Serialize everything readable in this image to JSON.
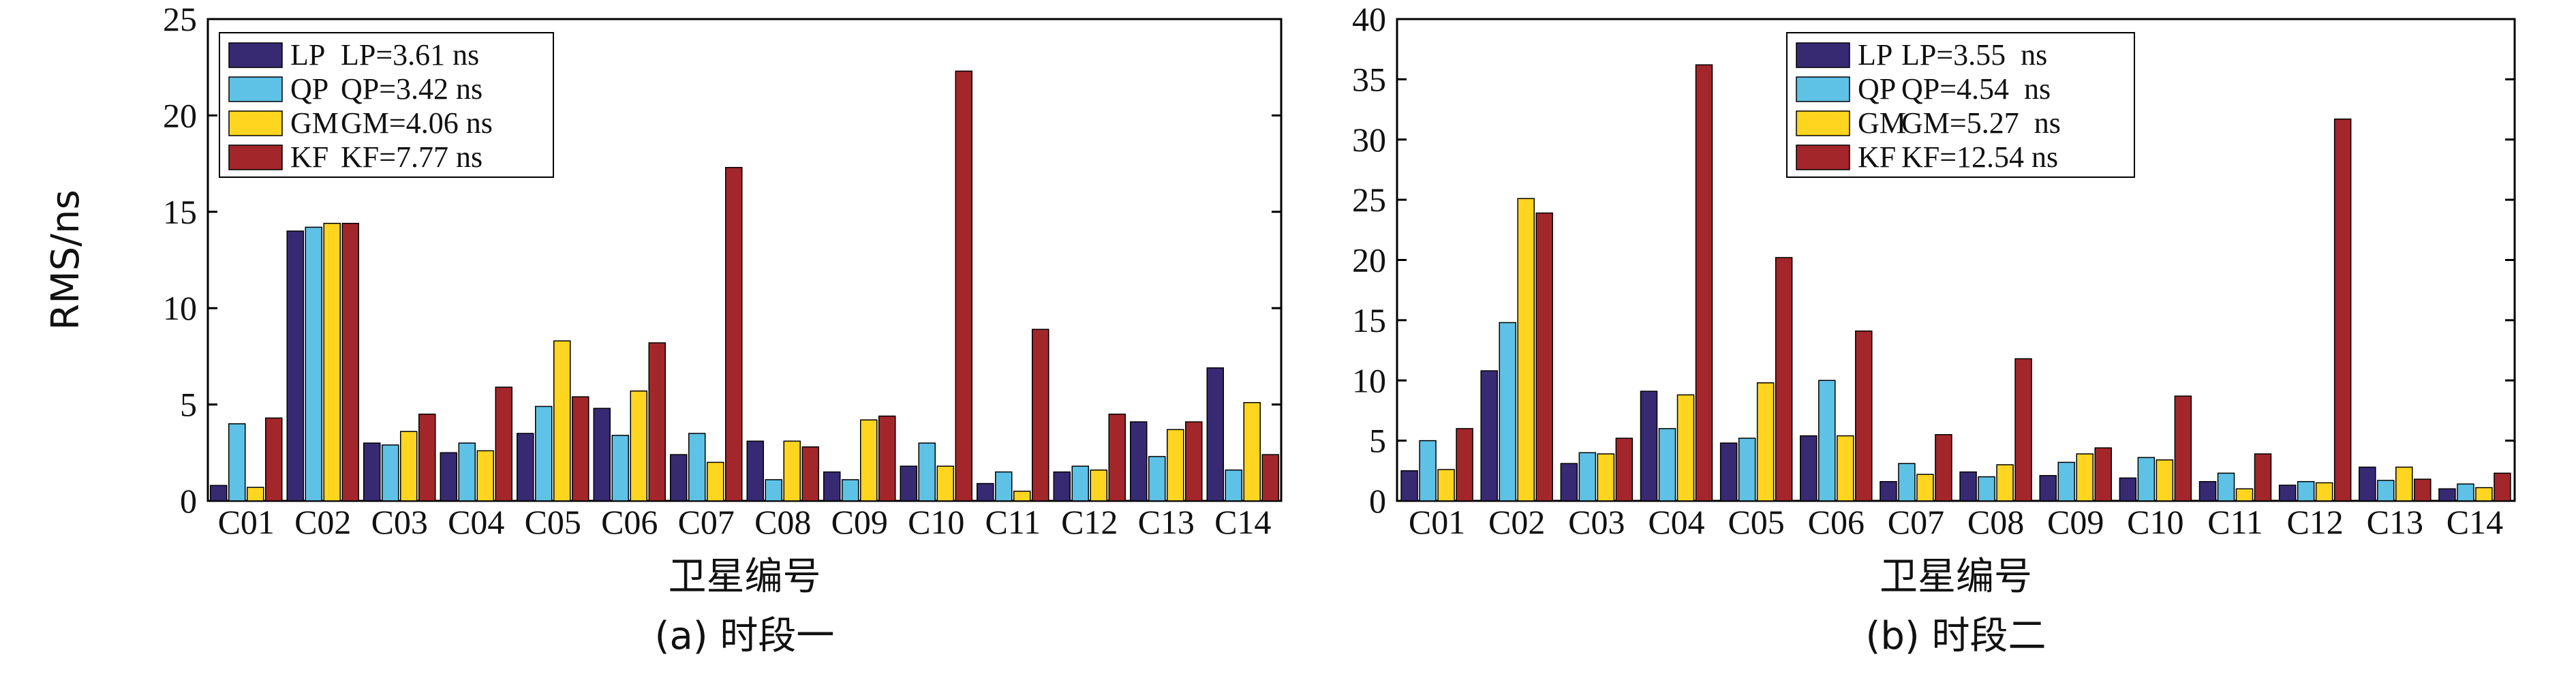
{
  "figure": {
    "colors": {
      "LP": "#372a73",
      "QP": "#5ec1e6",
      "GM": "#ffd51f",
      "KF": "#a3262a"
    },
    "panels": [
      {
        "caption": "(a) 时段一",
        "legend": [
          {
            "key": "LP",
            "name": "LP",
            "value": "LP=3.61 ns"
          },
          {
            "key": "QP",
            "name": "QP",
            "value": "QP=3.42 ns"
          },
          {
            "key": "GM",
            "name": "GM",
            "value": "GM=4.06 ns"
          },
          {
            "key": "KF",
            "name": "KF",
            "value": "KF=7.77 ns"
          }
        ]
      },
      {
        "caption": "(b) 时段二",
        "legend": [
          {
            "key": "LP",
            "name": "LP",
            "value": "LP=3.55  ns"
          },
          {
            "key": "QP",
            "name": "QP",
            "value": "QP=4.54  ns"
          },
          {
            "key": "GM",
            "name": "GM",
            "value": "GM=5.27  ns"
          },
          {
            "key": "KF",
            "name": "KF",
            "value": "KF=12.54 ns"
          }
        ]
      }
    ]
  },
  "chart_data": [
    {
      "type": "bar",
      "title": "",
      "xlabel": "卫星编号",
      "ylabel": "RMS/ns",
      "ylim": [
        0,
        25
      ],
      "yticks": [
        0,
        5,
        10,
        15,
        20,
        25
      ],
      "grid": false,
      "legend_position": "top-left",
      "categories": [
        "C01",
        "C02",
        "C03",
        "C04",
        "C05",
        "C06",
        "C07",
        "C08",
        "C09",
        "C10",
        "C11",
        "C12",
        "C13",
        "C14"
      ],
      "series": [
        {
          "name": "LP",
          "values": [
            0.8,
            14.0,
            3.0,
            2.5,
            3.5,
            4.8,
            2.4,
            3.1,
            1.5,
            1.8,
            0.9,
            1.5,
            4.1,
            6.9
          ]
        },
        {
          "name": "QP",
          "values": [
            4.0,
            14.2,
            2.9,
            3.0,
            4.9,
            3.4,
            3.5,
            1.1,
            1.1,
            3.0,
            1.5,
            1.8,
            2.3,
            1.6
          ]
        },
        {
          "name": "GM",
          "values": [
            0.7,
            14.4,
            3.6,
            2.6,
            8.3,
            5.7,
            2.0,
            3.1,
            4.2,
            1.8,
            0.5,
            1.6,
            3.7,
            5.1
          ]
        },
        {
          "name": "KF",
          "values": [
            4.3,
            14.4,
            4.5,
            5.9,
            5.4,
            8.2,
            17.3,
            2.8,
            4.4,
            22.3,
            8.9,
            4.5,
            4.1,
            2.4
          ]
        }
      ]
    },
    {
      "type": "bar",
      "title": "",
      "xlabel": "卫星编号",
      "ylabel": "",
      "ylim": [
        0,
        40
      ],
      "yticks": [
        0,
        5,
        10,
        15,
        20,
        25,
        30,
        35,
        40
      ],
      "grid": false,
      "legend_position": "top-left",
      "categories": [
        "C01",
        "C02",
        "C03",
        "C04",
        "C05",
        "C06",
        "C07",
        "C08",
        "C09",
        "C10",
        "C11",
        "C12",
        "C13",
        "C14"
      ],
      "series": [
        {
          "name": "LP",
          "values": [
            2.5,
            10.8,
            3.1,
            9.1,
            4.8,
            5.4,
            1.6,
            2.4,
            2.1,
            1.9,
            1.6,
            1.3,
            2.8,
            1.0
          ]
        },
        {
          "name": "QP",
          "values": [
            5.0,
            14.8,
            4.0,
            6.0,
            5.2,
            10.0,
            3.1,
            2.0,
            3.2,
            3.6,
            2.3,
            1.6,
            1.7,
            1.4
          ]
        },
        {
          "name": "GM",
          "values": [
            2.6,
            25.1,
            3.9,
            8.8,
            9.8,
            5.4,
            2.2,
            3.0,
            3.9,
            3.4,
            1.0,
            1.5,
            2.8,
            1.1
          ]
        },
        {
          "name": "KF",
          "values": [
            6.0,
            23.9,
            5.2,
            36.2,
            20.2,
            14.1,
            5.5,
            11.8,
            4.4,
            8.7,
            3.9,
            31.7,
            1.8,
            2.3
          ]
        }
      ]
    }
  ]
}
